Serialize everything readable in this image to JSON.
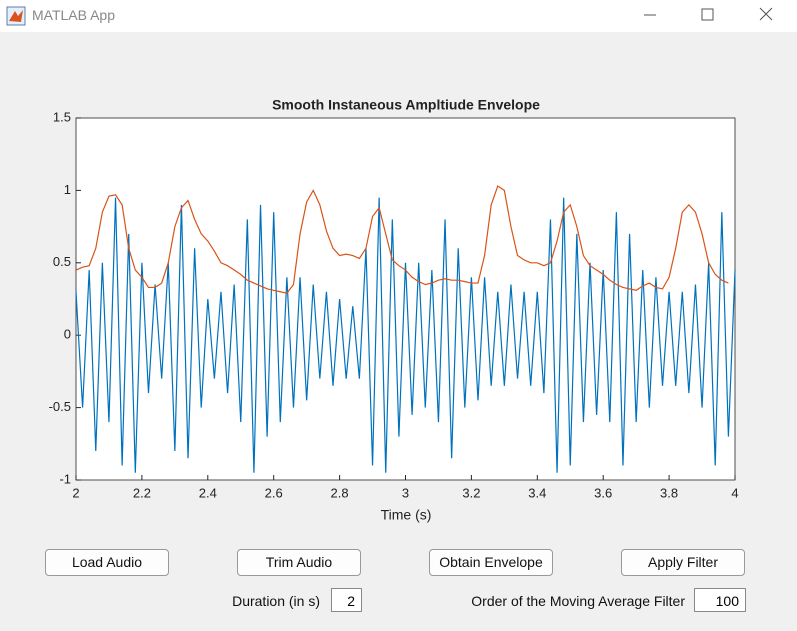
{
  "window": {
    "title": "MATLAB App"
  },
  "chart_data": {
    "type": "line",
    "title": "Smooth Instaneous Ampltiude Envelope",
    "xlabel": "Time (s)",
    "x": [
      2.0,
      2.02,
      2.04,
      2.06,
      2.08,
      2.1,
      2.12,
      2.14,
      2.16,
      2.18,
      2.2,
      2.22,
      2.24,
      2.26,
      2.28,
      2.3,
      2.32,
      2.34,
      2.36,
      2.38,
      2.4,
      2.42,
      2.44,
      2.46,
      2.48,
      2.5,
      2.52,
      2.54,
      2.56,
      2.58,
      2.6,
      2.62,
      2.64,
      2.66,
      2.68,
      2.7,
      2.72,
      2.74,
      2.76,
      2.78,
      2.8,
      2.82,
      2.84,
      2.86,
      2.88,
      2.9,
      2.92,
      2.94,
      2.96,
      2.98,
      3.0,
      3.02,
      3.04,
      3.06,
      3.08,
      3.1,
      3.12,
      3.14,
      3.16,
      3.18,
      3.2,
      3.22,
      3.24,
      3.26,
      3.28,
      3.3,
      3.32,
      3.34,
      3.36,
      3.38,
      3.4,
      3.42,
      3.44,
      3.46,
      3.48,
      3.5,
      3.52,
      3.54,
      3.56,
      3.58,
      3.6,
      3.62,
      3.64,
      3.66,
      3.68,
      3.7,
      3.72,
      3.74,
      3.76,
      3.78,
      3.8,
      3.82,
      3.84,
      3.86,
      3.88,
      3.9,
      3.92,
      3.94,
      3.96,
      3.98,
      4.0
    ],
    "series": [
      {
        "color": "#0072bd",
        "values": [
          0.3,
          -0.5,
          0.45,
          -0.8,
          0.5,
          -0.6,
          0.95,
          -0.9,
          0.7,
          -0.95,
          0.5,
          -0.4,
          0.35,
          -0.3,
          0.5,
          -0.8,
          0.9,
          -0.85,
          0.6,
          -0.5,
          0.25,
          -0.3,
          0.3,
          -0.4,
          0.35,
          -0.6,
          0.8,
          -0.95,
          0.9,
          -0.7,
          0.85,
          -0.6,
          0.4,
          -0.5,
          0.4,
          -0.45,
          0.35,
          -0.3,
          0.3,
          -0.35,
          0.25,
          -0.3,
          0.2,
          -0.3,
          0.6,
          -0.9,
          0.95,
          -0.95,
          0.8,
          -0.7,
          0.5,
          -0.55,
          0.5,
          -0.5,
          0.45,
          -0.6,
          0.8,
          -0.85,
          0.6,
          -0.5,
          0.4,
          -0.45,
          0.4,
          -0.35,
          0.3,
          -0.35,
          0.35,
          -0.3,
          0.3,
          -0.35,
          0.3,
          -0.4,
          0.8,
          -0.95,
          0.95,
          -0.9,
          0.7,
          -0.6,
          0.5,
          -0.55,
          0.45,
          -0.6,
          0.85,
          -0.9,
          0.7,
          -0.6,
          0.45,
          -0.5,
          0.4,
          -0.35,
          0.3,
          -0.35,
          0.3,
          -0.4,
          0.35,
          -0.5,
          0.5,
          -0.9,
          0.85,
          -0.7,
          0.45
        ]
      },
      {
        "color": "#d95319",
        "values": [
          0.45,
          0.47,
          0.48,
          0.6,
          0.85,
          0.96,
          0.97,
          0.9,
          0.6,
          0.45,
          0.4,
          0.33,
          0.33,
          0.36,
          0.5,
          0.75,
          0.88,
          0.93,
          0.8,
          0.7,
          0.65,
          0.58,
          0.5,
          0.48,
          0.45,
          0.42,
          0.38,
          0.36,
          0.34,
          0.32,
          0.31,
          0.3,
          0.29,
          0.35,
          0.7,
          0.92,
          1.0,
          0.9,
          0.72,
          0.6,
          0.55,
          0.56,
          0.55,
          0.53,
          0.6,
          0.82,
          0.88,
          0.7,
          0.52,
          0.48,
          0.45,
          0.4,
          0.37,
          0.35,
          0.36,
          0.38,
          0.39,
          0.38,
          0.38,
          0.37,
          0.36,
          0.36,
          0.55,
          0.9,
          1.03,
          1.0,
          0.75,
          0.55,
          0.52,
          0.5,
          0.5,
          0.48,
          0.5,
          0.65,
          0.85,
          0.9,
          0.75,
          0.55,
          0.48,
          0.45,
          0.42,
          0.38,
          0.35,
          0.33,
          0.32,
          0.31,
          0.34,
          0.36,
          0.33,
          0.32,
          0.4,
          0.6,
          0.85,
          0.9,
          0.85,
          0.7,
          0.5,
          0.42,
          0.38,
          0.36,
          null
        ]
      }
    ],
    "xlim": [
      2,
      4
    ],
    "xticks": [
      2,
      2.2,
      2.4,
      2.6,
      2.8,
      3,
      3.2,
      3.4,
      3.6,
      3.8,
      4
    ],
    "ylim": [
      -1,
      1.5
    ],
    "yticks": [
      -1,
      -0.5,
      0,
      0.5,
      1,
      1.5
    ],
    "grid": false
  },
  "controls": {
    "buttons": [
      "Load Audio",
      "Trim Audio",
      "Obtain Envelope",
      "Apply Filter"
    ],
    "duration_label": "Duration (in s)",
    "duration_value": 2,
    "filter_label": "Order of the Moving Average Filter",
    "filter_value": 100
  }
}
